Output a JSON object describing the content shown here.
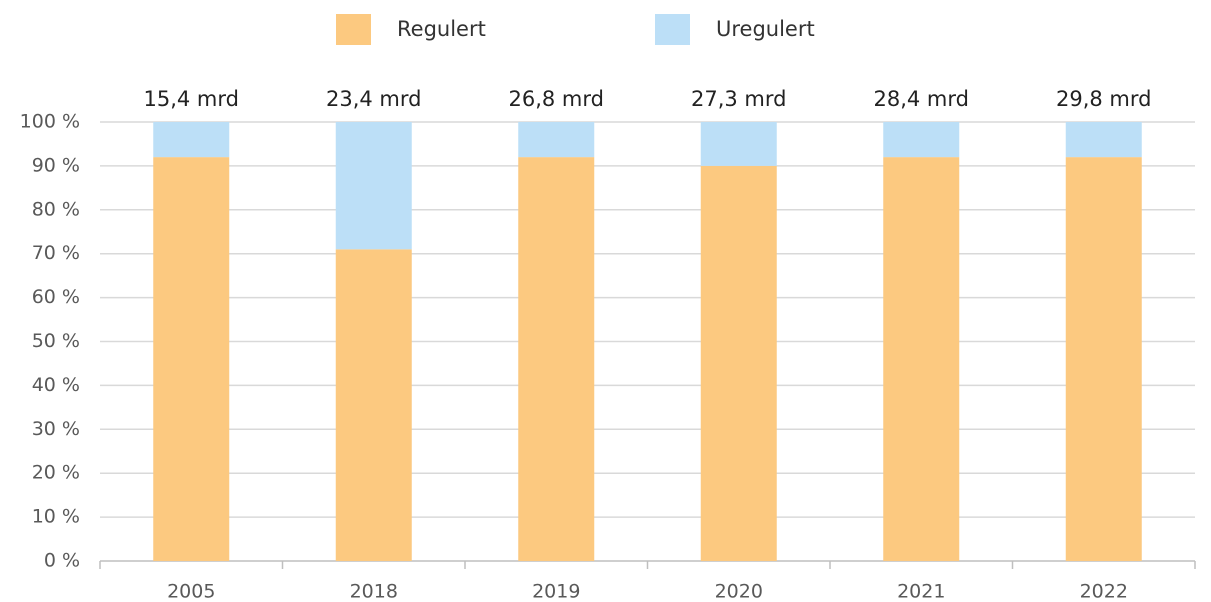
{
  "chart_data": {
    "type": "stacked_bar",
    "categories": [
      "2005",
      "2018",
      "2019",
      "2020",
      "2021",
      "2022"
    ],
    "series": [
      {
        "name": "Regulert",
        "color": "#fcc980",
        "values": [
          92,
          71,
          92,
          90,
          92,
          92
        ]
      },
      {
        "name": "Uregulert",
        "color": "#bcdff7",
        "values": [
          8,
          29,
          8,
          10,
          8,
          8
        ]
      }
    ],
    "annotations": [
      "15,4 mrd",
      "23,4 mrd",
      "26,8 mrd",
      "27,3 mrd",
      "28,4 mrd",
      "29,8 mrd"
    ],
    "ylim": [
      0,
      100
    ],
    "yticks": [
      {
        "value": 0,
        "label": "0 %"
      },
      {
        "value": 10,
        "label": "10 %"
      },
      {
        "value": 20,
        "label": "20 %"
      },
      {
        "value": 30,
        "label": "30 %"
      },
      {
        "value": 40,
        "label": "40 %"
      },
      {
        "value": 50,
        "label": "50 %"
      },
      {
        "value": 60,
        "label": "60 %"
      },
      {
        "value": 70,
        "label": "70 %"
      },
      {
        "value": 80,
        "label": "80 %"
      },
      {
        "value": 90,
        "label": "90 %"
      },
      {
        "value": 100,
        "label": "100 %"
      }
    ],
    "grid": true,
    "legend": "top"
  }
}
